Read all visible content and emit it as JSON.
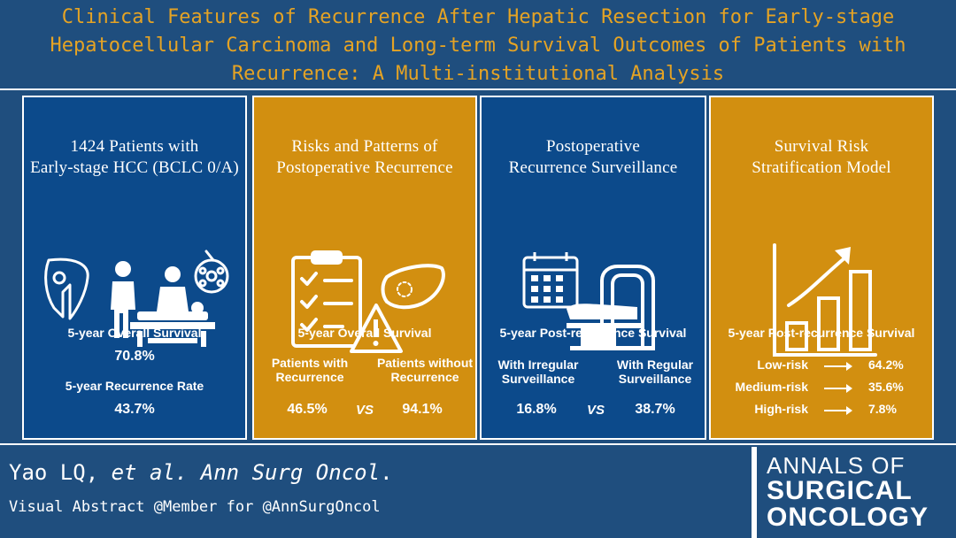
{
  "header": {
    "title_lines": [
      "Clinical Features of Recurrence After Hepatic Resection for Early-stage",
      "Hepatocellular Carcinoma and Long-term Survival Outcomes of Patients with",
      "Recurrence: A Multi-institutional Analysis"
    ]
  },
  "panels": [
    {
      "title_lines": [
        "1424 Patients with",
        "Early-stage HCC (BCLC 0/A)"
      ],
      "icon": "surgery-scene-icon",
      "stats": [
        {
          "label": "5-year Overall Survival",
          "value": "70.8%"
        },
        {
          "label": "5-year Recurrence Rate",
          "value": "43.7%"
        }
      ]
    },
    {
      "title_lines": [
        "Risks and Patterns of",
        "Postoperative Recurrence"
      ],
      "icon": "checklist-liver-warning-icon",
      "heading": "5-year Overall Survival",
      "left": {
        "label_lines": [
          "Patients with",
          "Recurrence"
        ],
        "value": "46.5%"
      },
      "right": {
        "label_lines": [
          "Patients without",
          "Recurrence"
        ],
        "value": "94.1%"
      },
      "vs": "VS"
    },
    {
      "title_lines": [
        "Postoperative",
        "Recurrence Surveillance"
      ],
      "icon": "calendar-ct-scanner-icon",
      "heading": "5-year Post-recurrence Survival",
      "left": {
        "label_lines": [
          "With Irregular",
          "Surveillance"
        ],
        "value": "16.8%"
      },
      "right": {
        "label_lines": [
          "With Regular",
          "Surveillance"
        ],
        "value": "38.7%"
      },
      "vs": "VS"
    },
    {
      "title_lines": [
        "Survival Risk",
        "Stratification Model"
      ],
      "icon": "bar-chart-growth-icon",
      "heading": "5-year Post-recurrence Survival",
      "risks": [
        {
          "label": "Low-risk",
          "value": "64.2%"
        },
        {
          "label": "Medium-risk",
          "value": "35.6%"
        },
        {
          "label": "High-risk",
          "value": "7.8%"
        }
      ]
    }
  ],
  "footer": {
    "authors": "Yao LQ,",
    "et_al": "et al.",
    "journal_abbrev": "Ann Surg Oncol",
    "period": ".",
    "credit": "Visual Abstract @Member for @AnnSurgOncol",
    "journal_name": [
      "ANNALS OF",
      "SURGICAL",
      "ONCOLOGY"
    ]
  },
  "colors": {
    "blue_panel": "#0c4a8b",
    "gold_panel": "#d28f10",
    "title_gold": "#e5a324",
    "background": "#1f4e7e"
  }
}
